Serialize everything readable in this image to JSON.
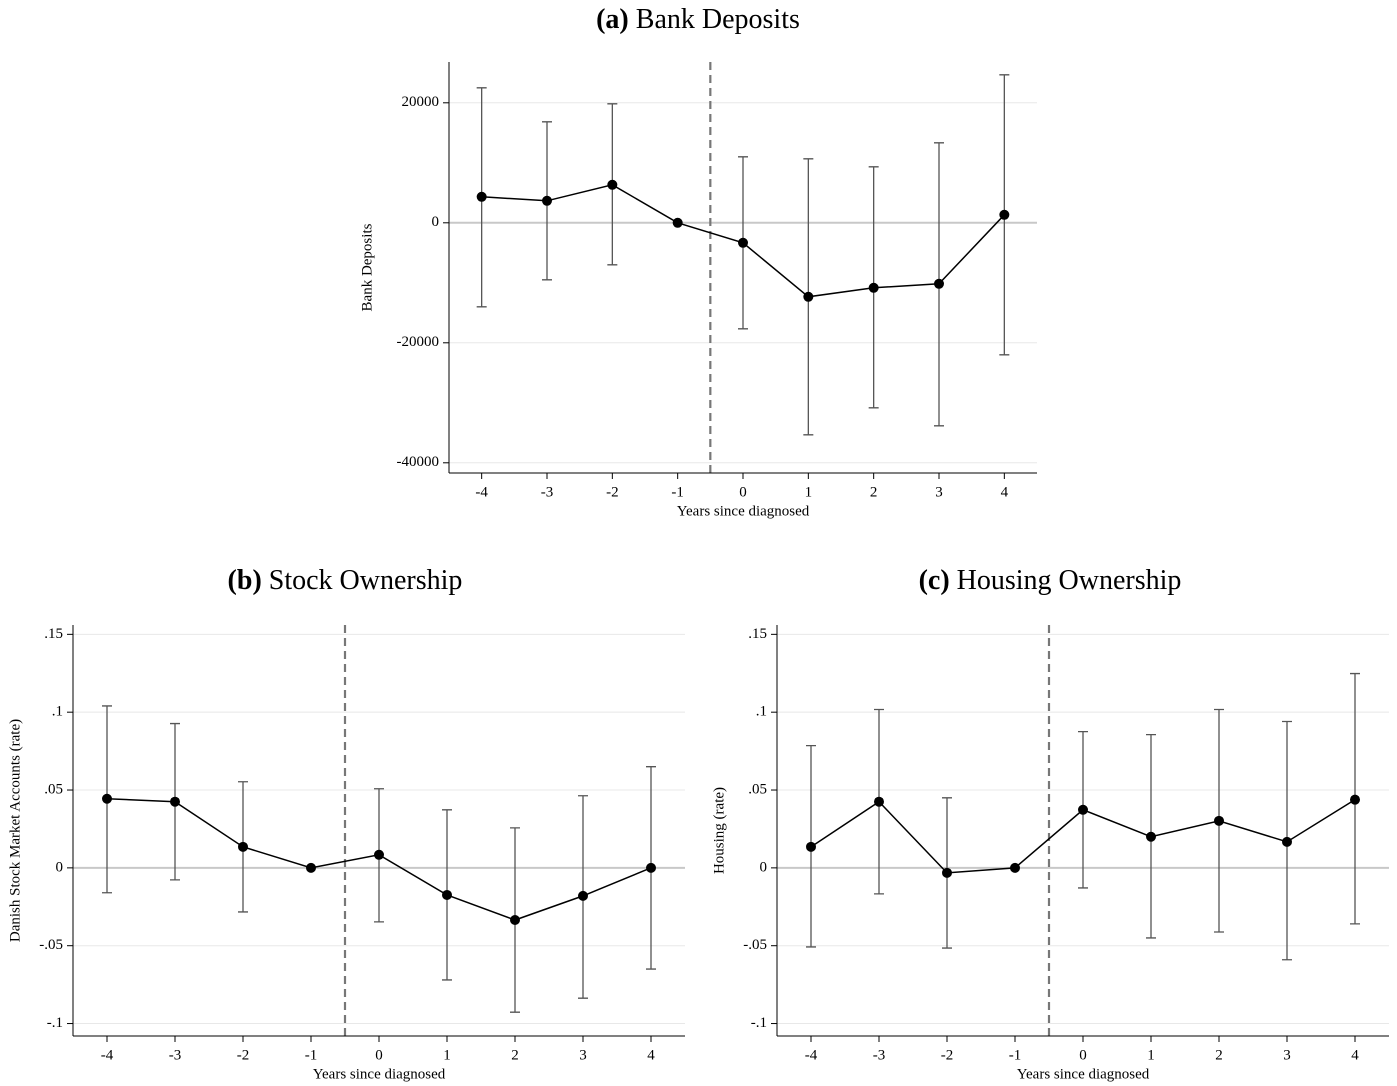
{
  "chart_data": [
    {
      "type": "line",
      "panel": "(a)",
      "title": "Bank Deposits",
      "xlabel": "Years since diagnosed",
      "ylabel": "Bank Deposits",
      "x": [
        -4,
        -3,
        -2,
        -1,
        0,
        1,
        2,
        3,
        4
      ],
      "xlim": [
        -4.5,
        4.5
      ],
      "xticks": [
        -4,
        -3,
        -2,
        -1,
        0,
        1,
        2,
        3,
        4
      ],
      "ylim": [
        -41700,
        26800
      ],
      "yticks": [
        -40000,
        -20000,
        0,
        20000
      ],
      "grid": true,
      "hline": 0,
      "vline": -0.5,
      "errorbar_color": "#555555",
      "series": [
        {
          "color": "#000000",
          "values": [
            4333,
            3667,
            6333,
            0,
            -3333,
            -12333,
            -10833,
            -10167,
            1333
          ],
          "lower": [
            -14000,
            -9500,
            -7000,
            null,
            -17667,
            -35333,
            -30833,
            -33833,
            -22000
          ],
          "upper": [
            22500,
            16833,
            19833,
            null,
            11000,
            10667,
            9333,
            13333,
            24667
          ]
        }
      ]
    },
    {
      "type": "line",
      "panel": "(b)",
      "title": "Stock Ownership",
      "xlabel": "Years since diagnosed",
      "ylabel": "Danish Stock Market Accounts (rate)",
      "x": [
        -4,
        -3,
        -2,
        -1,
        0,
        1,
        2,
        3,
        4
      ],
      "xlim": [
        -4.5,
        4.5
      ],
      "xticks": [
        -4,
        -3,
        -2,
        -1,
        0,
        1,
        2,
        3,
        4
      ],
      "ylim": [
        -0.108,
        0.156
      ],
      "yticks": [
        {
          "value": -0.1,
          "label": "-.1"
        },
        {
          "value": -0.05,
          "label": "-.05"
        },
        0,
        {
          "value": 0.05,
          "label": ".05"
        },
        {
          "value": 0.1,
          "label": ".1"
        },
        {
          "value": 0.15,
          "label": ".15"
        }
      ],
      "grid": true,
      "hline": 0,
      "vline": -0.5,
      "errorbar_color": "#555555",
      "series": [
        {
          "color": "#000000",
          "values": [
            0.0444,
            0.0425,
            0.0135,
            0,
            0.0084,
            -0.0174,
            -0.0335,
            -0.018,
            0
          ],
          "lower": [
            -0.016,
            -0.0077,
            -0.0283,
            null,
            -0.0347,
            -0.072,
            -0.0927,
            -0.0837,
            -0.065
          ],
          "upper": [
            0.104,
            0.0927,
            0.0553,
            null,
            0.0508,
            0.0373,
            0.0257,
            0.0463,
            0.065
          ]
        }
      ]
    },
    {
      "type": "line",
      "panel": "(c)",
      "title": "Housing Ownership",
      "xlabel": "Years since diagnosed",
      "ylabel": "Housing (rate)",
      "x": [
        -4,
        -3,
        -2,
        -1,
        0,
        1,
        2,
        3,
        4
      ],
      "xlim": [
        -4.5,
        4.5
      ],
      "xticks": [
        -4,
        -3,
        -2,
        -1,
        0,
        1,
        2,
        3,
        4
      ],
      "ylim": [
        -0.108,
        0.156
      ],
      "yticks": [
        {
          "value": -0.1,
          "label": "-.1"
        },
        {
          "value": -0.05,
          "label": "-.05"
        },
        0,
        {
          "value": 0.05,
          "label": ".05"
        },
        {
          "value": 0.1,
          "label": ".1"
        },
        {
          "value": 0.15,
          "label": ".15"
        }
      ],
      "grid": true,
      "hline": 0,
      "vline": -0.5,
      "errorbar_color": "#555555",
      "series": [
        {
          "color": "#000000",
          "values": [
            0.0135,
            0.0425,
            -0.0032,
            0,
            0.0373,
            0.02,
            0.0302,
            0.0167,
            0.0438
          ],
          "lower": [
            -0.0508,
            -0.0167,
            -0.0515,
            null,
            -0.0129,
            -0.045,
            -0.0412,
            -0.059,
            -0.036
          ],
          "upper": [
            0.0785,
            0.1017,
            0.045,
            null,
            0.0875,
            0.0856,
            0.1017,
            0.094,
            0.1248
          ]
        }
      ]
    }
  ]
}
